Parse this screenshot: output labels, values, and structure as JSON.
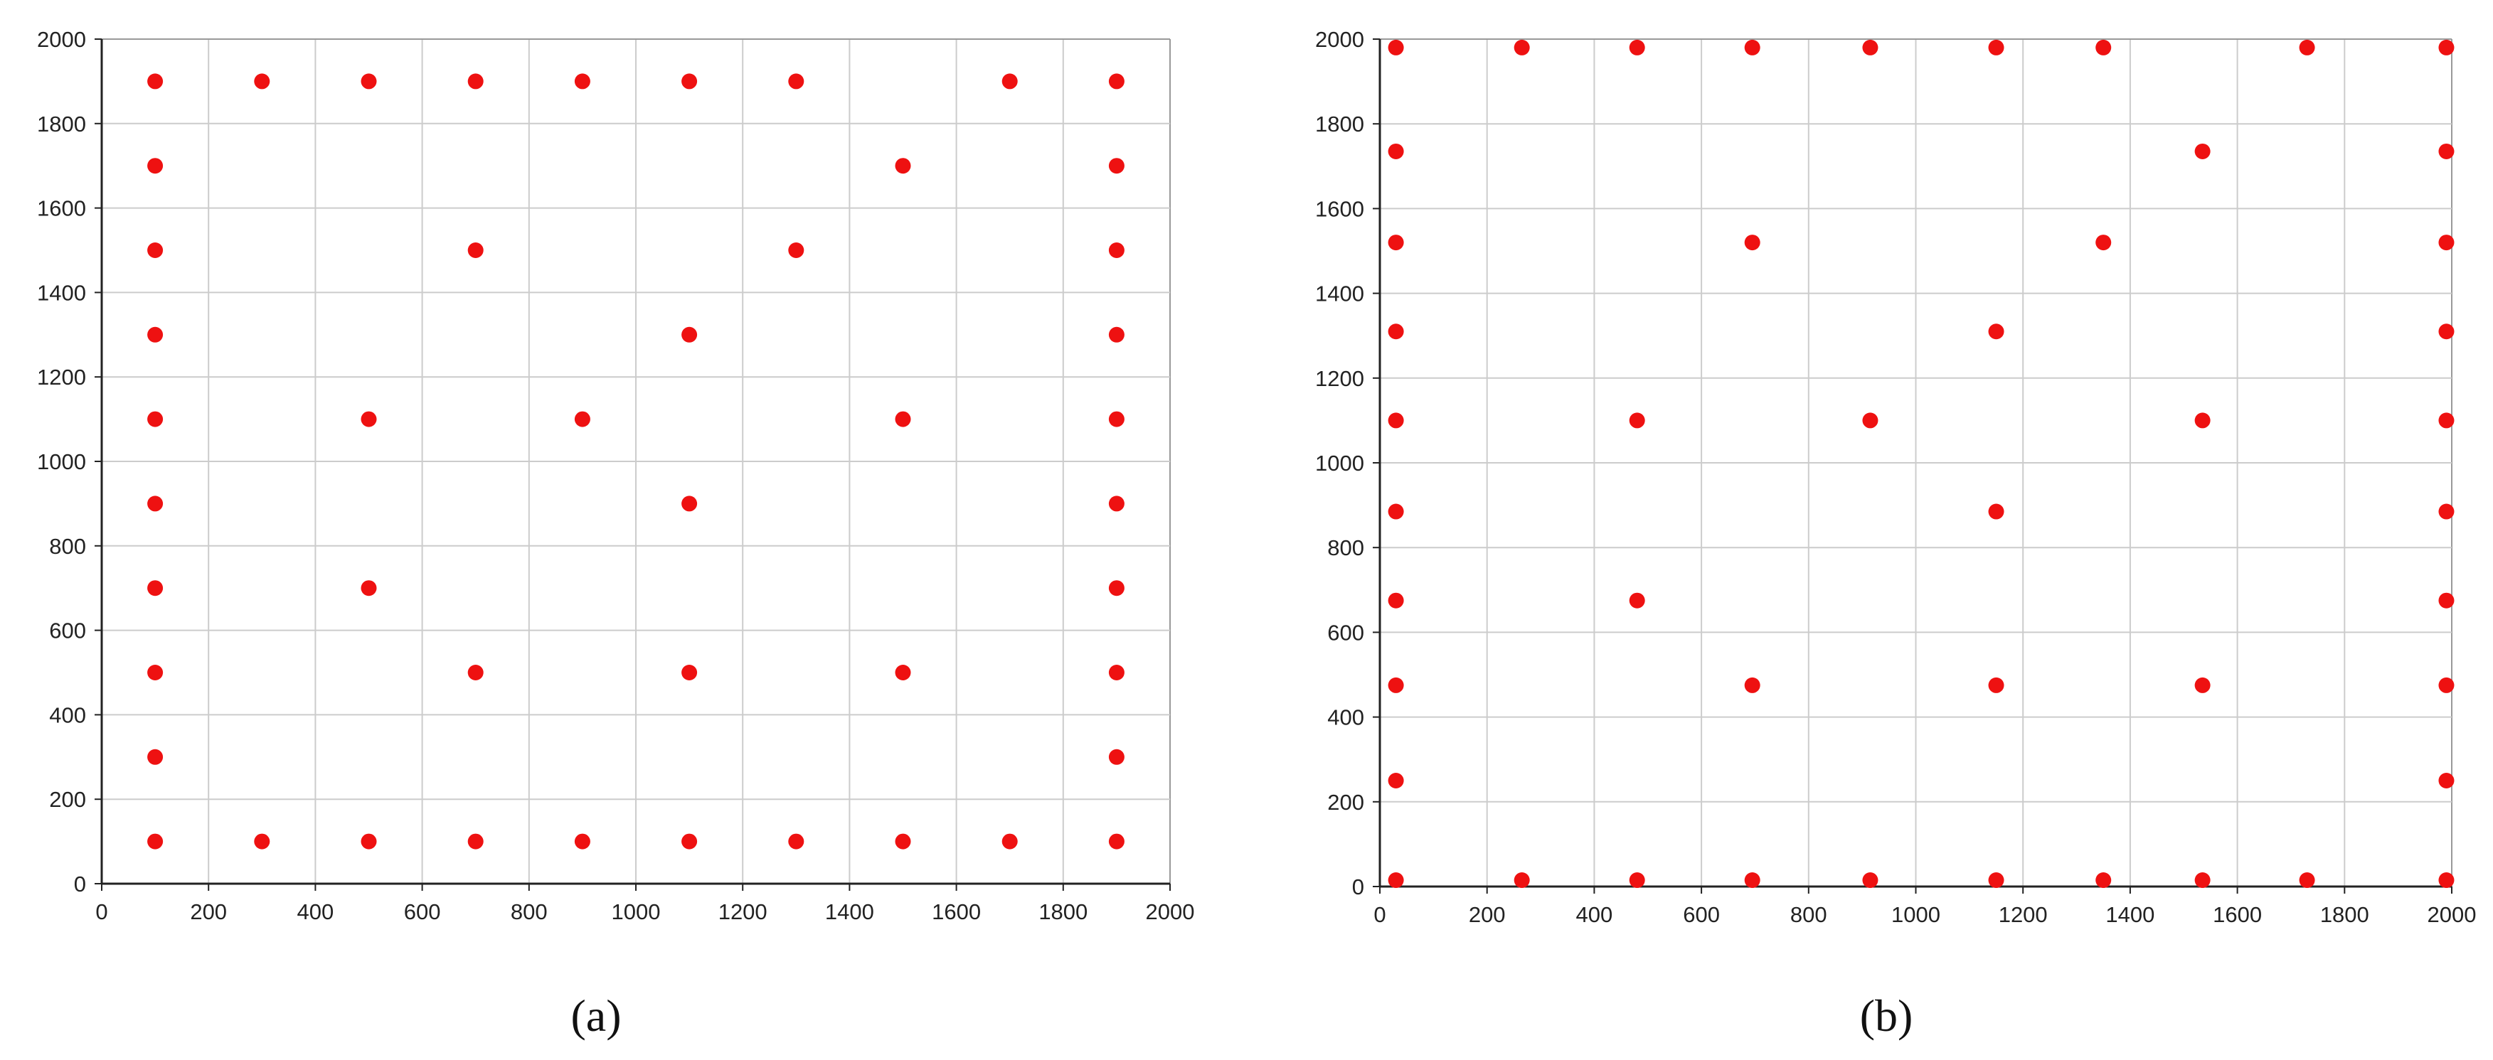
{
  "colors": {
    "point": "#ee1111",
    "grid": "#cccccc",
    "axis": "#222222",
    "frame": "#999999"
  },
  "chart_data": [
    {
      "type": "scatter",
      "caption": "(a)",
      "xlabel": "",
      "ylabel": "",
      "xlim": [
        0,
        2000
      ],
      "ylim": [
        0,
        2000
      ],
      "xticks": [
        0,
        200,
        400,
        600,
        800,
        1000,
        1200,
        1400,
        1600,
        1800,
        2000
      ],
      "yticks": [
        0,
        200,
        400,
        600,
        800,
        1000,
        1200,
        1400,
        1600,
        1800,
        2000
      ],
      "grid": true,
      "legend": "none",
      "series": [
        {
          "points": [
            [
              100,
              1900
            ],
            [
              300,
              1900
            ],
            [
              500,
              1900
            ],
            [
              700,
              1900
            ],
            [
              900,
              1900
            ],
            [
              1100,
              1900
            ],
            [
              1300,
              1900
            ],
            [
              1700,
              1900
            ],
            [
              1900,
              1900
            ],
            [
              100,
              1700
            ],
            [
              1500,
              1700
            ],
            [
              1900,
              1700
            ],
            [
              100,
              1500
            ],
            [
              700,
              1500
            ],
            [
              1300,
              1500
            ],
            [
              1900,
              1500
            ],
            [
              100,
              1300
            ],
            [
              1100,
              1300
            ],
            [
              1900,
              1300
            ],
            [
              100,
              1100
            ],
            [
              500,
              1100
            ],
            [
              900,
              1100
            ],
            [
              1500,
              1100
            ],
            [
              1900,
              1100
            ],
            [
              100,
              900
            ],
            [
              1100,
              900
            ],
            [
              1900,
              900
            ],
            [
              100,
              700
            ],
            [
              500,
              700
            ],
            [
              1900,
              700
            ],
            [
              100,
              500
            ],
            [
              700,
              500
            ],
            [
              1100,
              500
            ],
            [
              1500,
              500
            ],
            [
              1900,
              500
            ],
            [
              100,
              300
            ],
            [
              1900,
              300
            ],
            [
              100,
              100
            ],
            [
              300,
              100
            ],
            [
              500,
              100
            ],
            [
              700,
              100
            ],
            [
              900,
              100
            ],
            [
              1100,
              100
            ],
            [
              1300,
              100
            ],
            [
              1500,
              100
            ],
            [
              1700,
              100
            ],
            [
              1900,
              100
            ]
          ]
        }
      ]
    },
    {
      "type": "scatter",
      "caption": "(b)",
      "xlabel": "",
      "ylabel": "",
      "xlim": [
        0,
        2000
      ],
      "ylim": [
        0,
        2000
      ],
      "xticks": [
        0,
        200,
        400,
        600,
        800,
        1000,
        1200,
        1400,
        1600,
        1800,
        2000
      ],
      "yticks": [
        0,
        200,
        400,
        600,
        800,
        1000,
        1200,
        1400,
        1600,
        1800,
        2000
      ],
      "grid": true,
      "legend": "none",
      "series": [
        {
          "points": [
            [
              30,
              1980
            ],
            [
              265,
              1980
            ],
            [
              480,
              1980
            ],
            [
              695,
              1980
            ],
            [
              915,
              1980
            ],
            [
              1150,
              1980
            ],
            [
              1350,
              1980
            ],
            [
              1730,
              1980
            ],
            [
              1990,
              1980
            ],
            [
              30,
              1735
            ],
            [
              1535,
              1735
            ],
            [
              1990,
              1735
            ],
            [
              30,
              1520
            ],
            [
              695,
              1520
            ],
            [
              1350,
              1520
            ],
            [
              1990,
              1520
            ],
            [
              30,
              1310
            ],
            [
              1150,
              1310
            ],
            [
              1990,
              1310
            ],
            [
              30,
              1100
            ],
            [
              480,
              1100
            ],
            [
              915,
              1100
            ],
            [
              1535,
              1100
            ],
            [
              1990,
              1100
            ],
            [
              30,
              885
            ],
            [
              1150,
              885
            ],
            [
              1990,
              885
            ],
            [
              30,
              675
            ],
            [
              480,
              675
            ],
            [
              1990,
              675
            ],
            [
              30,
              475
            ],
            [
              695,
              475
            ],
            [
              1150,
              475
            ],
            [
              1535,
              475
            ],
            [
              1990,
              475
            ],
            [
              30,
              250
            ],
            [
              1990,
              250
            ],
            [
              30,
              15
            ],
            [
              265,
              15
            ],
            [
              480,
              15
            ],
            [
              695,
              15
            ],
            [
              915,
              15
            ],
            [
              1150,
              15
            ],
            [
              1350,
              15
            ],
            [
              1535,
              15
            ],
            [
              1730,
              15
            ],
            [
              1990,
              15
            ]
          ]
        }
      ]
    }
  ]
}
